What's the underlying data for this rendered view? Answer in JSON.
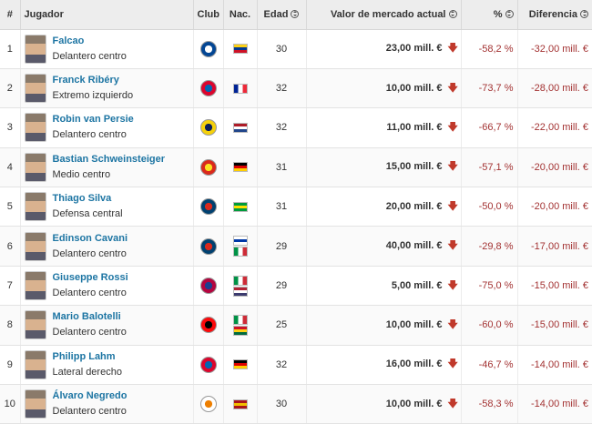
{
  "headers": {
    "num": "#",
    "player": "Jugador",
    "club": "Club",
    "nat": "Nac.",
    "age": "Edad",
    "value": "Valor de mercado actual",
    "pct": "%",
    "diff": "Diferencia"
  },
  "colors": {
    "link": "#1d75a3",
    "negative": "#a33232",
    "arrow_down": "#c0392b",
    "header_bg": "#ededed"
  },
  "icons": {
    "sort": "sort-updown-icon",
    "value_trend": "arrow-down-icon"
  },
  "rows": [
    {
      "num": "1",
      "name": "Falcao",
      "position": "Delantero centro",
      "club_icon": "chelsea-crest-icon",
      "club_colors": [
        "#034694",
        "#ffffff"
      ],
      "flags": [
        {
          "icon": "colombia-flag-icon",
          "bands": [
            "#fcd116",
            "#003893",
            "#ce1126"
          ],
          "dir": "h"
        }
      ],
      "age": "30",
      "value": "23,00 mill. €",
      "pct": "-58,2 %",
      "diff": "-32,00 mill. €"
    },
    {
      "num": "2",
      "name": "Franck Ribéry",
      "position": "Extremo izquierdo",
      "club_icon": "bayern-crest-icon",
      "club_colors": [
        "#dc052d",
        "#0066b2"
      ],
      "flags": [
        {
          "icon": "france-flag-icon",
          "bands": [
            "#002395",
            "#ffffff",
            "#ed2939"
          ],
          "dir": "v"
        }
      ],
      "age": "32",
      "value": "10,00 mill. €",
      "pct": "-73,7 %",
      "diff": "-28,00 mill. €"
    },
    {
      "num": "3",
      "name": "Robin van Persie",
      "position": "Delantero centro",
      "club_icon": "fenerbahce-crest-icon",
      "club_colors": [
        "#f5d10b",
        "#0a1e5b"
      ],
      "flags": [
        {
          "icon": "netherlands-flag-icon",
          "bands": [
            "#ae1c28",
            "#ffffff",
            "#21468b"
          ],
          "dir": "h"
        }
      ],
      "age": "32",
      "value": "11,00 mill. €",
      "pct": "-66,7 %",
      "diff": "-22,00 mill. €"
    },
    {
      "num": "4",
      "name": "Bastian Schweinsteiger",
      "position": "Medio centro",
      "club_icon": "manchester-united-crest-icon",
      "club_colors": [
        "#da291c",
        "#fbe122"
      ],
      "flags": [
        {
          "icon": "germany-flag-icon",
          "bands": [
            "#000000",
            "#dd0000",
            "#ffce00"
          ],
          "dir": "h"
        }
      ],
      "age": "31",
      "value": "15,00 mill. €",
      "pct": "-57,1 %",
      "diff": "-20,00 mill. €"
    },
    {
      "num": "5",
      "name": "Thiago Silva",
      "position": "Defensa central",
      "club_icon": "psg-crest-icon",
      "club_colors": [
        "#004170",
        "#da291c"
      ],
      "flags": [
        {
          "icon": "brazil-flag-icon",
          "bands": [
            "#009c3b",
            "#ffdf00",
            "#009c3b"
          ],
          "dir": "h"
        }
      ],
      "age": "31",
      "value": "20,00 mill. €",
      "pct": "-50,0 %",
      "diff": "-20,00 mill. €"
    },
    {
      "num": "6",
      "name": "Edinson Cavani",
      "position": "Delantero centro",
      "club_icon": "psg-crest-icon",
      "club_colors": [
        "#004170",
        "#da291c"
      ],
      "flags": [
        {
          "icon": "uruguay-flag-icon",
          "bands": [
            "#ffffff",
            "#0038a8",
            "#ffffff"
          ],
          "dir": "h"
        },
        {
          "icon": "italy-flag-icon",
          "bands": [
            "#009246",
            "#ffffff",
            "#ce2b37"
          ],
          "dir": "v"
        }
      ],
      "age": "29",
      "value": "40,00 mill. €",
      "pct": "-29,8 %",
      "diff": "-17,00 mill. €"
    },
    {
      "num": "7",
      "name": "Giuseppe Rossi",
      "position": "Delantero centro",
      "club_icon": "levante-crest-icon",
      "club_colors": [
        "#b4053f",
        "#1c3f8f"
      ],
      "flags": [
        {
          "icon": "italy-flag-icon",
          "bands": [
            "#009246",
            "#ffffff",
            "#ce2b37"
          ],
          "dir": "v"
        },
        {
          "icon": "usa-flag-icon",
          "bands": [
            "#b22234",
            "#ffffff",
            "#3c3b6e"
          ],
          "dir": "h"
        }
      ],
      "age": "29",
      "value": "5,00 mill. €",
      "pct": "-75,0 %",
      "diff": "-15,00 mill. €"
    },
    {
      "num": "8",
      "name": "Mario Balotelli",
      "position": "Delantero centro",
      "club_icon": "ac-milan-crest-icon",
      "club_colors": [
        "#fb090b",
        "#000000"
      ],
      "flags": [
        {
          "icon": "italy-flag-icon",
          "bands": [
            "#009246",
            "#ffffff",
            "#ce2b37"
          ],
          "dir": "v"
        },
        {
          "icon": "ghana-flag-icon",
          "bands": [
            "#ce1126",
            "#fcd116",
            "#006b3f"
          ],
          "dir": "h"
        }
      ],
      "age": "25",
      "value": "10,00 mill. €",
      "pct": "-60,0 %",
      "diff": "-15,00 mill. €"
    },
    {
      "num": "9",
      "name": "Philipp Lahm",
      "position": "Lateral derecho",
      "club_icon": "bayern-crest-icon",
      "club_colors": [
        "#dc052d",
        "#0066b2"
      ],
      "flags": [
        {
          "icon": "germany-flag-icon",
          "bands": [
            "#000000",
            "#dd0000",
            "#ffce00"
          ],
          "dir": "h"
        }
      ],
      "age": "32",
      "value": "16,00 mill. €",
      "pct": "-46,7 %",
      "diff": "-14,00 mill. €"
    },
    {
      "num": "10",
      "name": "Álvaro Negredo",
      "position": "Delantero centro",
      "club_icon": "valencia-crest-icon",
      "club_colors": [
        "#ffffff",
        "#ee7f00"
      ],
      "flags": [
        {
          "icon": "spain-flag-icon",
          "bands": [
            "#aa151b",
            "#f1bf00",
            "#aa151b"
          ],
          "dir": "h"
        }
      ],
      "age": "30",
      "value": "10,00 mill. €",
      "pct": "-58,3 %",
      "diff": "-14,00 mill. €"
    }
  ]
}
